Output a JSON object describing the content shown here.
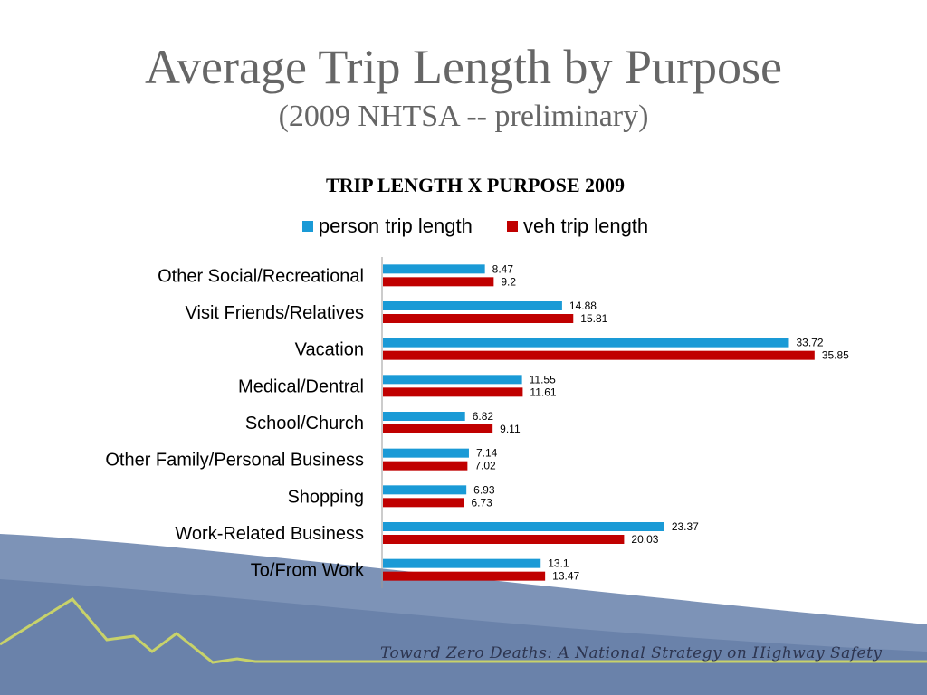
{
  "slide": {
    "title": "Average Trip Length by Purpose",
    "subtitle": "(2009 NHTSA -- preliminary)",
    "footer": "Toward Zero Deaths: A National Strategy on Highway Safety"
  },
  "chart_data": {
    "type": "bar",
    "orientation": "horizontal",
    "title": "TRIP LENGTH X PURPOSE 2009",
    "categories": [
      "Other Social/Recreational",
      "Visit Friends/Relatives",
      "Vacation",
      "Medical/Dentral",
      "School/Church",
      "Other Family/Personal Business",
      "Shopping",
      "Work-Related Business",
      "To/From Work"
    ],
    "series": [
      {
        "name": "person trip length",
        "color": "#1a9ad6",
        "values": [
          8.47,
          14.88,
          33.72,
          11.55,
          6.82,
          7.14,
          6.93,
          23.37,
          13.1
        ],
        "labels": [
          "8.47",
          "14.88",
          "33.72",
          "11.55",
          "6.82",
          "7.14",
          "6.93",
          "23.37",
          "13.1"
        ]
      },
      {
        "name": "veh trip length",
        "color": "#c00000",
        "values": [
          9.2,
          15.81,
          35.85,
          11.61,
          9.11,
          7.02,
          6.73,
          20.03,
          13.47
        ],
        "labels": [
          "9.2",
          "15.81",
          "35.85",
          "11.61",
          "9.11",
          "7.02",
          "6.73",
          "20.03",
          "13.47"
        ]
      }
    ],
    "xlim": [
      0,
      40
    ],
    "grid": false,
    "legend": "top"
  }
}
